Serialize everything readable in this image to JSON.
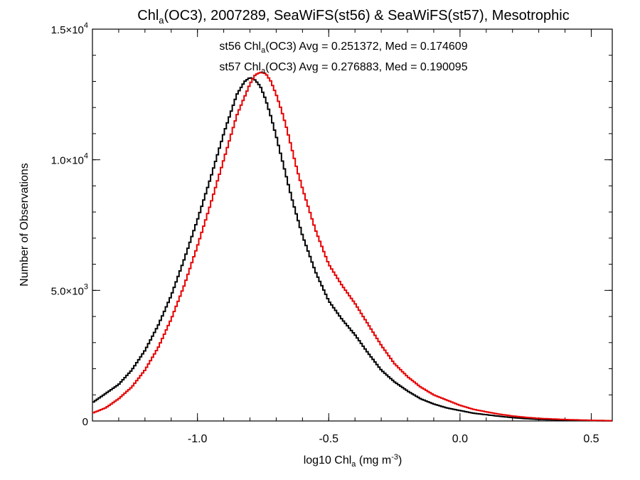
{
  "chart_data": {
    "type": "line",
    "step": true,
    "title": {
      "prefix": "Chl",
      "sub": "a",
      "suffix": "(OC3), 2007289, SeaWiFS(st56) & SeaWiFS(st57), Mesotrophic"
    },
    "xlabel": {
      "prefix": "log10 Chl",
      "sub": "a",
      "mid": " (mg m",
      "sup": "-3",
      "suffix": ")"
    },
    "ylabel": "Number of Observations",
    "xlim": [
      -1.4,
      0.58
    ],
    "ylim": [
      0,
      15000
    ],
    "x_ticks": [
      {
        "value": -1.0,
        "label": "-1.0"
      },
      {
        "value": -0.5,
        "label": "-0.5"
      },
      {
        "value": 0.0,
        "label": "0.0"
      },
      {
        "value": 0.5,
        "label": "0.5"
      }
    ],
    "y_ticks": [
      {
        "value": 0,
        "mant": "0",
        "exp": ""
      },
      {
        "value": 5000,
        "mant": "5.0×10",
        "exp": "3"
      },
      {
        "value": 10000,
        "mant": "1.0×10",
        "exp": "4"
      },
      {
        "value": 15000,
        "mant": "1.5×10",
        "exp": "4"
      }
    ],
    "x_minor_step": 0.1,
    "y_minor_step": 1000,
    "grid": false,
    "series": [
      {
        "name": "st56",
        "color": "#000000",
        "label": {
          "prefix": "st56 Chl",
          "sub": "a",
          "suffix": "(OC3) Avg = 0.251372, Med = 0.174609"
        },
        "x": [
          -1.4,
          -1.35,
          -1.3,
          -1.25,
          -1.2,
          -1.15,
          -1.1,
          -1.05,
          -1.0,
          -0.95,
          -0.9,
          -0.85,
          -0.82,
          -0.8,
          -0.78,
          -0.76,
          -0.74,
          -0.72,
          -0.7,
          -0.68,
          -0.66,
          -0.64,
          -0.62,
          -0.6,
          -0.55,
          -0.5,
          -0.45,
          -0.4,
          -0.35,
          -0.3,
          -0.25,
          -0.2,
          -0.15,
          -0.1,
          -0.05,
          0.0,
          0.05,
          0.1,
          0.15,
          0.2,
          0.25,
          0.3,
          0.4,
          0.5,
          0.58
        ],
        "y": [
          700,
          1050,
          1400,
          1950,
          2700,
          3650,
          4800,
          6200,
          7700,
          9300,
          11000,
          12500,
          13000,
          13150,
          13050,
          12800,
          12300,
          11650,
          10900,
          10100,
          9300,
          8500,
          7800,
          7100,
          5700,
          4600,
          3900,
          3300,
          2600,
          1950,
          1500,
          1150,
          850,
          650,
          500,
          400,
          300,
          240,
          180,
          130,
          90,
          60,
          30,
          15,
          5
        ]
      },
      {
        "name": "st57",
        "color": "#e60000",
        "label": {
          "prefix": "st57 Chl",
          "sub": "a",
          "suffix": "(OC3) Avg = 0.276883, Med = 0.190095"
        },
        "x": [
          -1.4,
          -1.35,
          -1.3,
          -1.25,
          -1.2,
          -1.15,
          -1.1,
          -1.05,
          -1.0,
          -0.95,
          -0.9,
          -0.85,
          -0.8,
          -0.78,
          -0.76,
          -0.74,
          -0.72,
          -0.7,
          -0.68,
          -0.66,
          -0.64,
          -0.62,
          -0.6,
          -0.55,
          -0.5,
          -0.45,
          -0.4,
          -0.35,
          -0.3,
          -0.25,
          -0.2,
          -0.15,
          -0.1,
          -0.05,
          0.0,
          0.05,
          0.1,
          0.15,
          0.2,
          0.25,
          0.3,
          0.4,
          0.5,
          0.58
        ],
        "y": [
          300,
          500,
          850,
          1300,
          1950,
          2800,
          3900,
          5200,
          6700,
          8300,
          10000,
          11700,
          12900,
          13250,
          13350,
          13300,
          13000,
          12500,
          11900,
          11200,
          10400,
          9600,
          8900,
          7300,
          6000,
          5200,
          4500,
          3700,
          2900,
          2200,
          1700,
          1300,
          1000,
          800,
          600,
          450,
          350,
          260,
          190,
          140,
          100,
          55,
          25,
          10
        ]
      }
    ]
  }
}
